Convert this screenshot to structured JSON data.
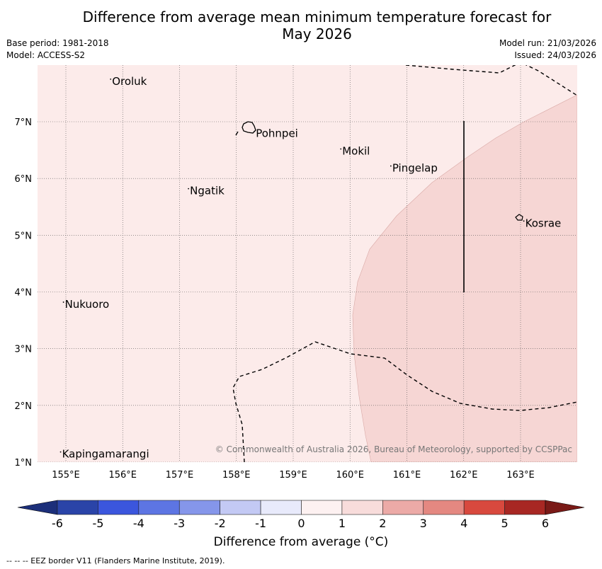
{
  "title_line1": "Difference from average mean minimum temperature forecast for",
  "title_line2": "May 2026",
  "base_period": "Base period: 1981-2018",
  "model": "Model: ACCESS-S2",
  "model_run": "Model run: 21/03/2026",
  "issued": "Issued: 24/03/2026",
  "copyright": "© Commonwealth of Australia 2026, Bureau of Meteorology, supported by CCSPPac",
  "lon_labels": [
    "155°E",
    "156°E",
    "157°E",
    "158°E",
    "159°E",
    "160°E",
    "161°E",
    "162°E",
    "163°E"
  ],
  "lat_labels": [
    "7°N",
    "6°N",
    "5°N",
    "4°N",
    "3°N",
    "2°N",
    "1°N"
  ],
  "places": [
    {
      "name": "Oroluk",
      "lon": 155.8,
      "lat": 7.65
    },
    {
      "name": "Pohnpei",
      "lon": 158.33,
      "lat": 6.73
    },
    {
      "name": "Mokil",
      "lon": 159.85,
      "lat": 6.42
    },
    {
      "name": "Pingelap",
      "lon": 160.73,
      "lat": 6.12
    },
    {
      "name": "Ngatik",
      "lon": 157.17,
      "lat": 5.72
    },
    {
      "name": "Kosrae",
      "lon": 163.07,
      "lat": 5.15
    },
    {
      "name": "Nukuoro",
      "lon": 154.97,
      "lat": 3.72
    },
    {
      "name": "Kapingamarangi",
      "lon": 154.92,
      "lat": 1.08
    }
  ],
  "colorbar": {
    "ticks": [
      "-6",
      "-5",
      "-4",
      "-3",
      "-2",
      "-1",
      "0",
      "1",
      "2",
      "3",
      "4",
      "5",
      "6"
    ],
    "colors": [
      "#2a44a8",
      "#3b56dd",
      "#5d75e3",
      "#8596ea",
      "#c3c9f4",
      "#e8eafb",
      "#fdf1f1",
      "#f8dcdb",
      "#ecaaa7",
      "#e48881",
      "#d8493e",
      "#a82723"
    ],
    "under_color": "#1c2f7a",
    "over_color": "#7a1a17",
    "label": "Difference from average (°C)"
  },
  "footnote": "-- -- -- EEZ border V11 (Flanders Marine Institute, 2019).",
  "colors": {
    "background_anomaly": "#fcebea",
    "warm_anomaly": "#f6d6d4"
  }
}
